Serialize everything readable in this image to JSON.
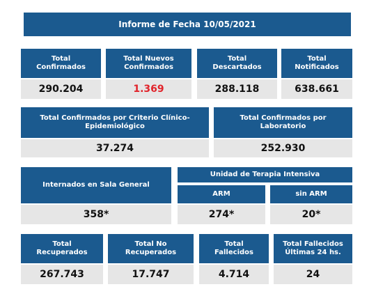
{
  "title": "Informe de Fecha 10/05/2021",
  "row1": [
    {
      "label": "Total\nConfirmados",
      "value": "290.204"
    },
    {
      "label": "Total Nuevos\nConfirmados",
      "value": "1.369"
    },
    {
      "label": "Total\nDescartados",
      "value": "288.118"
    },
    {
      "label": "Total\nNotificados",
      "value": "638.661"
    }
  ],
  "row2": [
    {
      "label": "Total Confirmados por Criterio Clínico-\nEpidemiológico",
      "value": "37.274"
    },
    {
      "label": "Total Confirmados por\nLaboratorio",
      "value": "252.930"
    }
  ],
  "row3": {
    "general": {
      "label": "Internados en Sala General",
      "value": "358*"
    },
    "uti": {
      "label": "Unidad de Terapia Intensiva",
      "arm": {
        "label": "ARM",
        "value": "274*"
      },
      "sin_arm": {
        "label": "sin ARM",
        "value": "20*"
      }
    }
  },
  "row4": [
    {
      "label": "Total\nRecuperados",
      "value": "267.743"
    },
    {
      "label": "Total No\nRecuperados",
      "value": "17.747"
    },
    {
      "label": "Total\nFallecidos",
      "value": "4.714"
    },
    {
      "label": "Total Fallecidos\nÚltimas 24 hs.",
      "value": "24"
    }
  ],
  "colors": {
    "header": "#1b5a8f",
    "value_bg": "#e6e6e6",
    "highlight": "#e1242b"
  }
}
